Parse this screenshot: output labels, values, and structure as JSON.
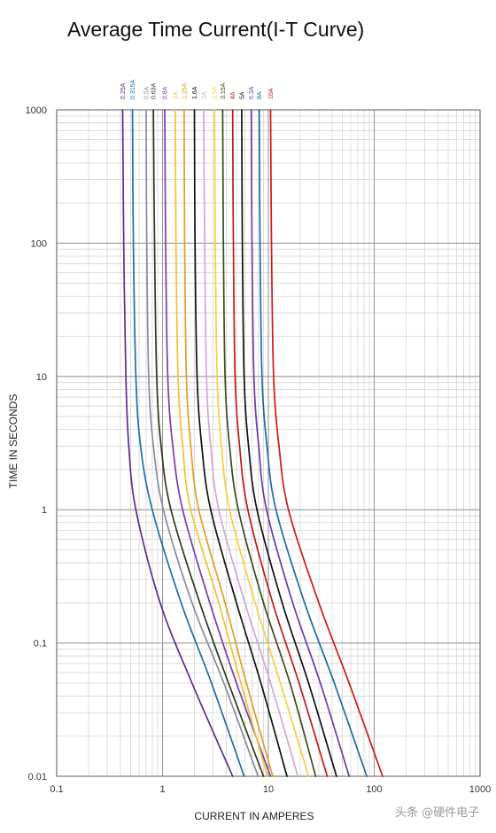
{
  "title": "Average Time Current(I-T Curve)",
  "watermark": "头条 @硬件电子",
  "chart_data": {
    "type": "line",
    "title": "Average Time Current(I-T Curve)",
    "xlabel": "CURRENT IN AMPERES",
    "ylabel": "TIME IN SECONDS",
    "x_scale": "log",
    "y_scale": "log",
    "xlim": [
      0.1,
      1000
    ],
    "ylim": [
      0.01,
      1000
    ],
    "x_ticks": [
      "0.1",
      "1",
      "10",
      "100",
      "1000"
    ],
    "y_ticks": [
      "0.01",
      "0.1",
      "1",
      "10",
      "100",
      "1000"
    ],
    "grid": true,
    "legend": "top labels above curves",
    "series": [
      {
        "name": "0.25A",
        "color": "#5b2d8e",
        "points": [
          [
            0.42,
            1000
          ],
          [
            0.43,
            100
          ],
          [
            0.45,
            10
          ],
          [
            0.48,
            3
          ],
          [
            0.56,
            1
          ],
          [
            0.95,
            0.2
          ],
          [
            1.9,
            0.05
          ],
          [
            4.6,
            0.01
          ]
        ]
      },
      {
        "name": "0.315A",
        "color": "#1f6ea8",
        "points": [
          [
            0.52,
            1000
          ],
          [
            0.53,
            100
          ],
          [
            0.56,
            10
          ],
          [
            0.62,
            3
          ],
          [
            0.8,
            1
          ],
          [
            1.5,
            0.2
          ],
          [
            2.9,
            0.05
          ],
          [
            5.9,
            0.01
          ]
        ]
      },
      {
        "name": "0.5A",
        "color": "#8d8a9a",
        "points": [
          [
            0.7,
            1000
          ],
          [
            0.71,
            100
          ],
          [
            0.74,
            10
          ],
          [
            0.82,
            3
          ],
          [
            1.02,
            1
          ],
          [
            1.9,
            0.2
          ],
          [
            3.8,
            0.05
          ],
          [
            8.0,
            0.01
          ]
        ]
      },
      {
        "name": "0.63A",
        "color": "#2e3a1e",
        "points": [
          [
            0.82,
            1000
          ],
          [
            0.84,
            100
          ],
          [
            0.88,
            10
          ],
          [
            0.97,
            3
          ],
          [
            1.2,
            1
          ],
          [
            2.25,
            0.2
          ],
          [
            4.2,
            0.05
          ],
          [
            9.0,
            0.01
          ]
        ]
      },
      {
        "name": "0.8A",
        "color": "#7a3bb0",
        "points": [
          [
            1.05,
            1000
          ],
          [
            1.07,
            100
          ],
          [
            1.12,
            10
          ],
          [
            1.25,
            3
          ],
          [
            1.55,
            1
          ],
          [
            2.8,
            0.2
          ],
          [
            5.0,
            0.05
          ],
          [
            10.5,
            0.01
          ]
        ]
      },
      {
        "name": "1A",
        "color": "#f2c230",
        "points": [
          [
            1.32,
            1000
          ],
          [
            1.34,
            100
          ],
          [
            1.4,
            10
          ],
          [
            1.55,
            3
          ],
          [
            1.85,
            1
          ],
          [
            3.4,
            0.2
          ],
          [
            5.5,
            0.05
          ],
          [
            9.8,
            0.01
          ]
        ]
      },
      {
        "name": "1.25A",
        "color": "#e0a020",
        "points": [
          [
            1.6,
            1000
          ],
          [
            1.62,
            100
          ],
          [
            1.68,
            10
          ],
          [
            1.85,
            3
          ],
          [
            2.2,
            1
          ],
          [
            3.9,
            0.2
          ],
          [
            6.2,
            0.05
          ],
          [
            11.0,
            0.01
          ]
        ]
      },
      {
        "name": "1.6A",
        "color": "#111111",
        "points": [
          [
            2.0,
            1000
          ],
          [
            2.03,
            100
          ],
          [
            2.12,
            10
          ],
          [
            2.35,
            3
          ],
          [
            2.85,
            1
          ],
          [
            5.0,
            0.2
          ],
          [
            8.5,
            0.05
          ],
          [
            15.0,
            0.01
          ]
        ]
      },
      {
        "name": "2A",
        "color": "#cfa8d8",
        "points": [
          [
            2.45,
            1000
          ],
          [
            2.5,
            100
          ],
          [
            2.6,
            10
          ],
          [
            2.85,
            3
          ],
          [
            3.4,
            1
          ],
          [
            6.0,
            0.2
          ],
          [
            10.5,
            0.05
          ],
          [
            19.0,
            0.01
          ]
        ]
      },
      {
        "name": "2.5A",
        "color": "#f5d040",
        "points": [
          [
            3.1,
            1000
          ],
          [
            3.15,
            100
          ],
          [
            3.28,
            10
          ],
          [
            3.6,
            3
          ],
          [
            4.3,
            1
          ],
          [
            7.5,
            0.2
          ],
          [
            13.0,
            0.05
          ],
          [
            24.0,
            0.01
          ]
        ]
      },
      {
        "name": "3.15A",
        "color": "#3a4a1a",
        "points": [
          [
            3.7,
            1000
          ],
          [
            3.76,
            100
          ],
          [
            3.9,
            10
          ],
          [
            4.3,
            3
          ],
          [
            5.2,
            1
          ],
          [
            9.0,
            0.2
          ],
          [
            16.0,
            0.05
          ],
          [
            28.0,
            0.01
          ]
        ]
      },
      {
        "name": "4A",
        "color": "#c01818",
        "points": [
          [
            4.6,
            1000
          ],
          [
            4.67,
            100
          ],
          [
            4.85,
            10
          ],
          [
            5.35,
            3
          ],
          [
            6.4,
            1
          ],
          [
            11.0,
            0.2
          ],
          [
            19.5,
            0.05
          ],
          [
            36.0,
            0.01
          ]
        ]
      },
      {
        "name": "5A",
        "color": "#101010",
        "points": [
          [
            5.6,
            1000
          ],
          [
            5.68,
            100
          ],
          [
            5.9,
            10
          ],
          [
            6.5,
            3
          ],
          [
            7.8,
            1
          ],
          [
            13.5,
            0.2
          ],
          [
            24.0,
            0.05
          ],
          [
            44.0,
            0.01
          ]
        ]
      },
      {
        "name": "6.3A",
        "color": "#6a3aa8",
        "points": [
          [
            6.9,
            1000
          ],
          [
            7.0,
            100
          ],
          [
            7.3,
            10
          ],
          [
            8.1,
            3
          ],
          [
            9.6,
            1
          ],
          [
            17.0,
            0.2
          ],
          [
            31.0,
            0.05
          ],
          [
            58.0,
            0.01
          ]
        ]
      },
      {
        "name": "8A",
        "color": "#1d6aa0",
        "points": [
          [
            8.2,
            1000
          ],
          [
            8.34,
            100
          ],
          [
            8.7,
            10
          ],
          [
            9.7,
            3
          ],
          [
            11.8,
            1
          ],
          [
            22.0,
            0.2
          ],
          [
            42.0,
            0.05
          ],
          [
            85.0,
            0.01
          ]
        ]
      },
      {
        "name": "10A",
        "color": "#d01818",
        "points": [
          [
            10.5,
            1000
          ],
          [
            10.7,
            100
          ],
          [
            11.2,
            10
          ],
          [
            12.6,
            3
          ],
          [
            15.5,
            1
          ],
          [
            30.0,
            0.2
          ],
          [
            58.0,
            0.05
          ],
          [
            120.0,
            0.01
          ]
        ]
      }
    ]
  }
}
